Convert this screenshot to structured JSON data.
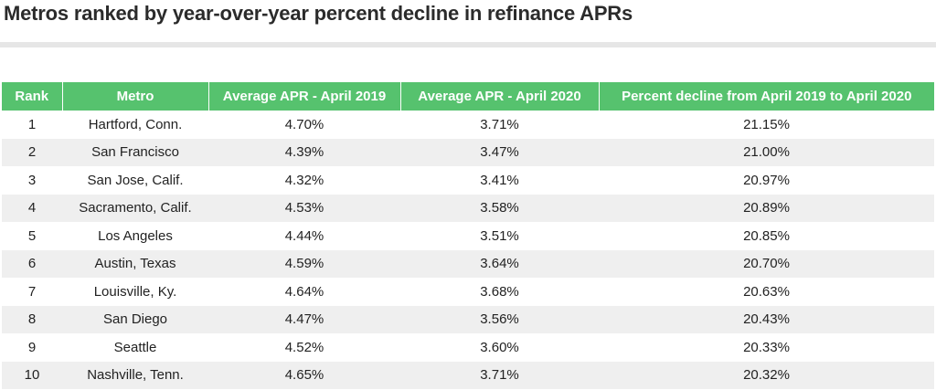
{
  "title": "Metros ranked by year-over-year percent decline in refinance APRs",
  "table": {
    "headers": [
      "Rank",
      "Metro",
      "Average APR - April 2019",
      "Average APR - April 2020",
      "Percent decline from April 2019 to April 2020"
    ],
    "rows": [
      [
        "1",
        "Hartford, Conn.",
        "4.70%",
        "3.71%",
        "21.15%"
      ],
      [
        "2",
        "San Francisco",
        "4.39%",
        "3.47%",
        "21.00%"
      ],
      [
        "3",
        "San Jose, Calif.",
        "4.32%",
        "3.41%",
        "20.97%"
      ],
      [
        "4",
        "Sacramento, Calif.",
        "4.53%",
        "3.58%",
        "20.89%"
      ],
      [
        "5",
        "Los Angeles",
        "4.44%",
        "3.51%",
        "20.85%"
      ],
      [
        "6",
        "Austin, Texas",
        "4.59%",
        "3.64%",
        "20.70%"
      ],
      [
        "7",
        "Louisville, Ky.",
        "4.64%",
        "3.68%",
        "20.63%"
      ],
      [
        "8",
        "San Diego",
        "4.47%",
        "3.56%",
        "20.43%"
      ],
      [
        "9",
        "Seattle",
        "4.52%",
        "3.60%",
        "20.33%"
      ],
      [
        "10",
        "Nashville, Tenn.",
        "4.65%",
        "3.71%",
        "20.32%"
      ]
    ]
  },
  "colors": {
    "header_bg": "#56c26e",
    "header_text": "#ffffff",
    "stripe": "#efefef",
    "rule": "#e6e6e6"
  }
}
